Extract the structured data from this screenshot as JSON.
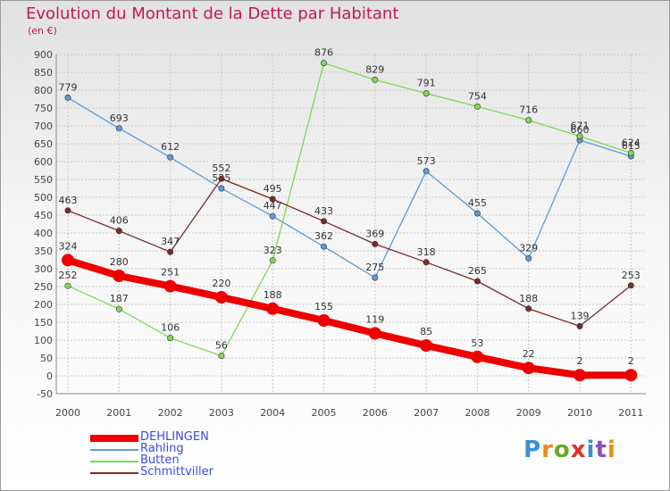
{
  "header": {
    "title": "Evolution du Montant de la Dette par Habitant",
    "subtitle": "(en €)"
  },
  "logo": {
    "text": "Proxiti",
    "letter_colors": [
      "#3a8fd6",
      "#e88b1c",
      "#6aa82a",
      "#e2302b",
      "#3a8fd6",
      "#8a4fb8",
      "#e88b1c"
    ]
  },
  "chart_data": {
    "type": "line",
    "title": "Evolution du Montant de la Dette par Habitant",
    "subtitle": "(en €)",
    "x": [
      "2000",
      "2001",
      "2002",
      "2003",
      "2004",
      "2005",
      "2006",
      "2007",
      "2008",
      "2009",
      "2010",
      "2011"
    ],
    "ylim": [
      -50,
      900
    ],
    "yticks": [
      -50,
      0,
      50,
      100,
      150,
      200,
      250,
      300,
      350,
      400,
      450,
      500,
      550,
      600,
      650,
      700,
      750,
      800,
      850,
      900
    ],
    "grid": true,
    "legend_position": "bottom-left",
    "series": [
      {
        "name": "DEHLINGEN",
        "color": "#ee0000",
        "bold": true,
        "values": [
          324,
          280,
          251,
          220,
          188,
          155,
          119,
          85,
          53,
          22,
          2,
          2
        ]
      },
      {
        "name": "Rahling",
        "color": "#5b9bd5",
        "bold": false,
        "values": [
          779,
          693,
          612,
          525,
          447,
          362,
          275,
          573,
          455,
          329,
          660,
          615
        ]
      },
      {
        "name": "Butten",
        "color": "#7ed957",
        "bold": false,
        "values": [
          252,
          187,
          106,
          56,
          323,
          876,
          829,
          791,
          754,
          716,
          671,
          624
        ]
      },
      {
        "name": "Schmittviller",
        "color": "#7a2a2a",
        "bold": false,
        "values": [
          463,
          406,
          347,
          552,
          495,
          433,
          369,
          318,
          265,
          188,
          139,
          253
        ]
      }
    ]
  }
}
